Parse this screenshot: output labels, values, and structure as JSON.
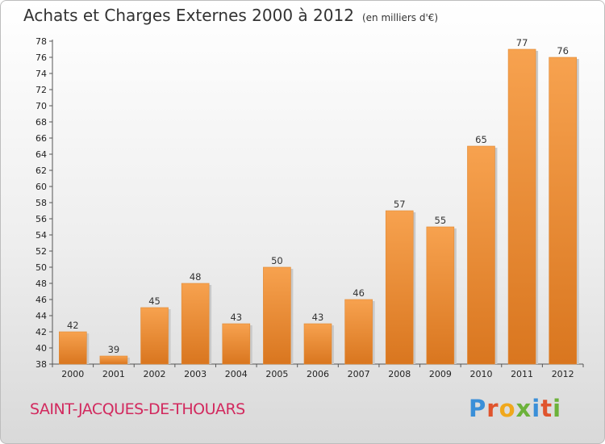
{
  "header": {
    "title": "Achats et Charges Externes 2000 à 2012",
    "subtitle": "(en milliers d'€)"
  },
  "footer": {
    "place": "SAINT-JACQUES-DE-THOUARS",
    "logo": "Proxiti"
  },
  "colors": {
    "bar_light": "#f7a24f",
    "bar_dark": "#d9761f",
    "place_text": "#d2295e",
    "logo_letters": [
      "#3a8fd8",
      "#e0542d",
      "#f0a81c",
      "#6cb23a",
      "#3a8fd8",
      "#e0542d",
      "#6cb23a"
    ]
  },
  "chart_data": {
    "type": "bar",
    "title": "Achats et Charges Externes 2000 à 2012",
    "subtitle": "(en milliers d'€)",
    "categories": [
      "2000",
      "2001",
      "2002",
      "2003",
      "2004",
      "2005",
      "2006",
      "2007",
      "2008",
      "2009",
      "2010",
      "2011",
      "2012"
    ],
    "values": [
      42,
      39,
      45,
      48,
      43,
      50,
      43,
      46,
      57,
      55,
      65,
      77,
      76
    ],
    "ylim": [
      38,
      78
    ],
    "yticks": [
      38,
      40,
      42,
      44,
      46,
      48,
      50,
      52,
      54,
      56,
      58,
      60,
      62,
      64,
      66,
      68,
      70,
      72,
      74,
      76,
      78
    ],
    "grid": false,
    "legend": "none",
    "data_labels": true
  }
}
